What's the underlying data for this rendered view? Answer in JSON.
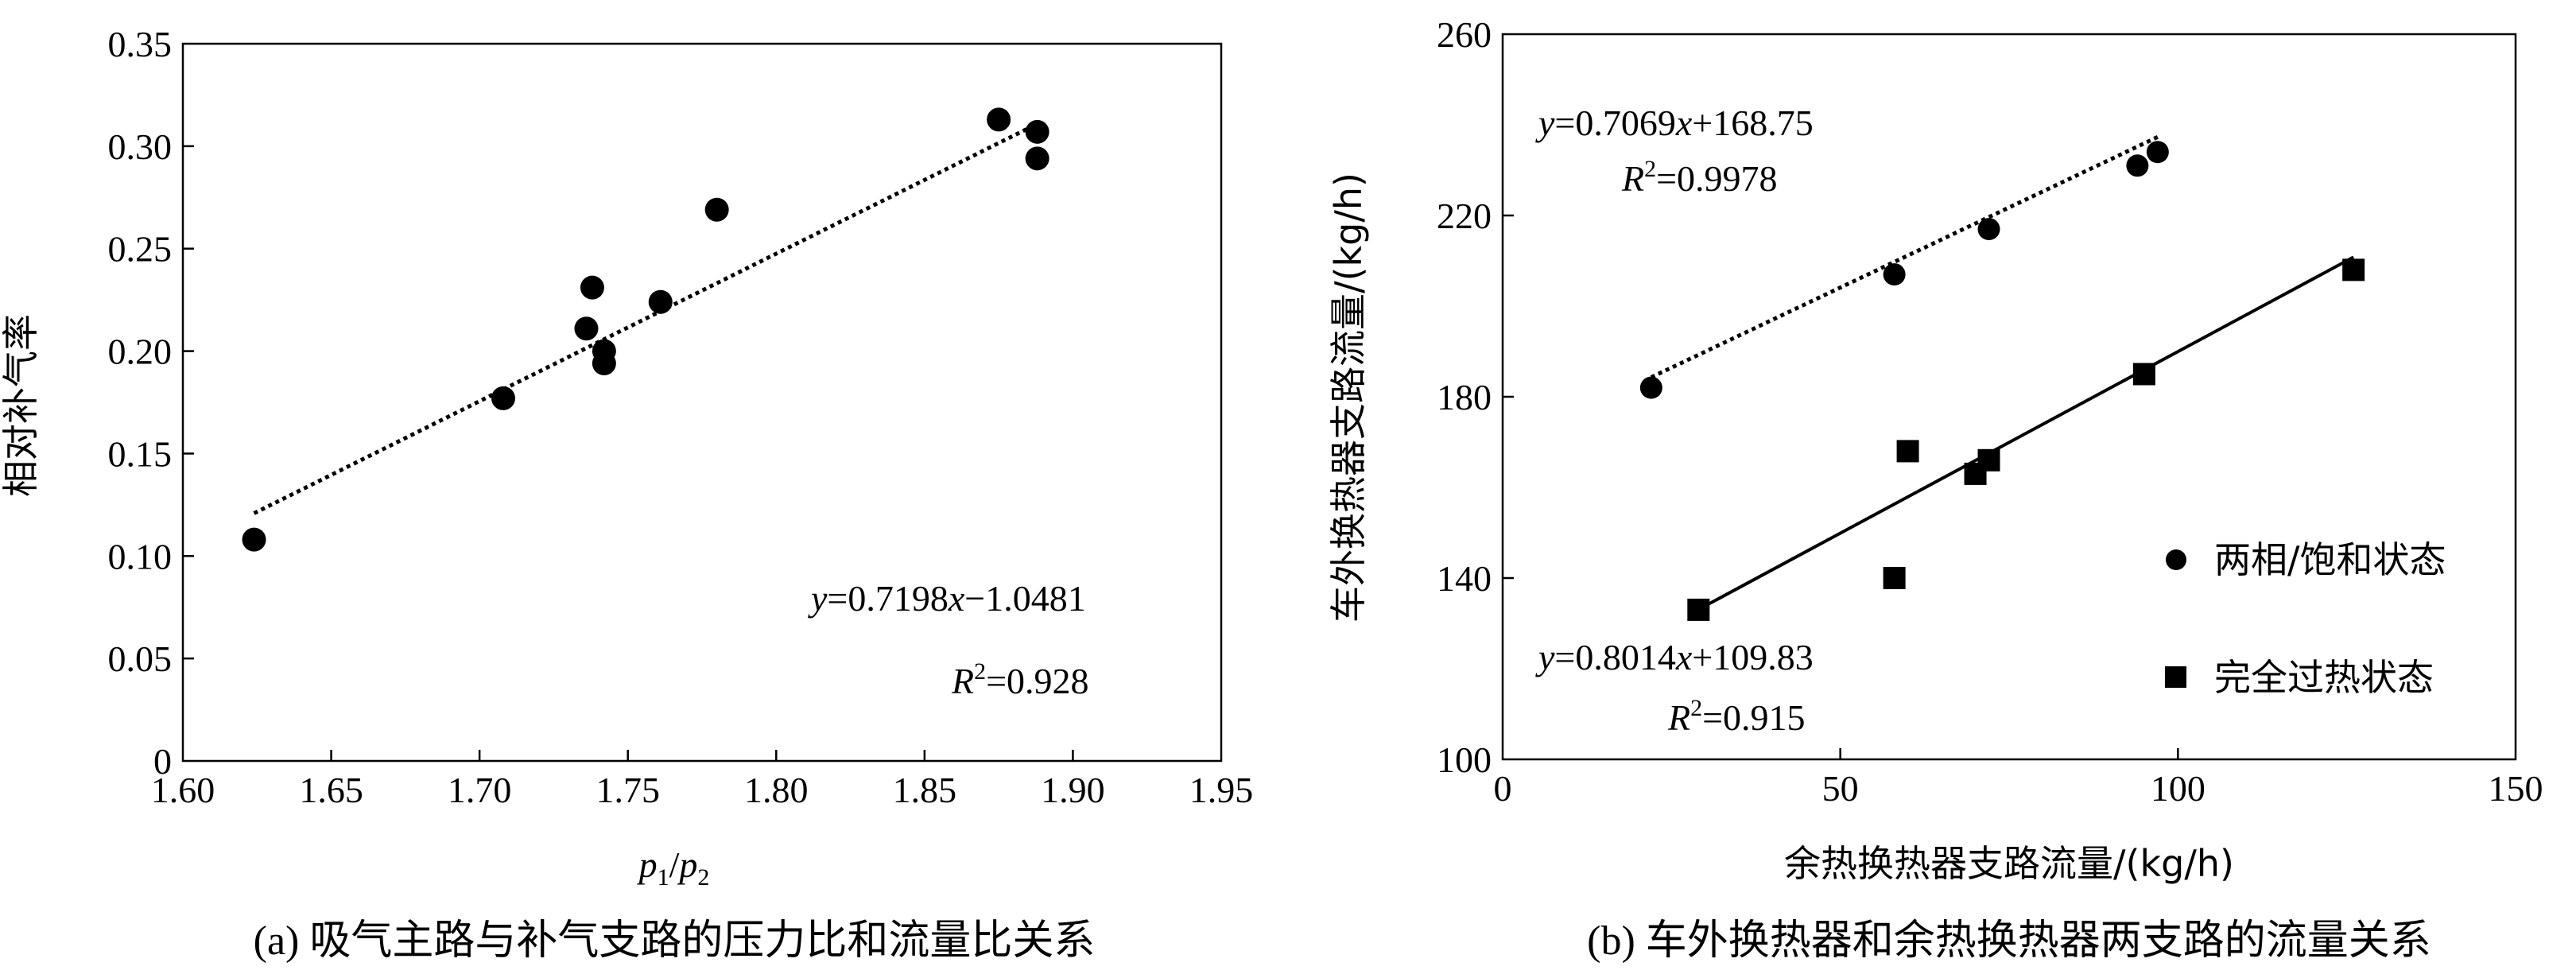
{
  "chart_data": [
    {
      "type": "scatter",
      "xlabel_p": "p",
      "xlabel_sub1": "1",
      "xlabel_slash": "/",
      "xlabel_sub2": "2",
      "ylabel": "相对补气率",
      "xlim": [
        1.6,
        1.95
      ],
      "ylim": [
        0,
        0.35
      ],
      "xticks": [
        "1.60",
        "1.65",
        "1.70",
        "1.75",
        "1.80",
        "1.85",
        "1.90",
        "1.95"
      ],
      "yticks": [
        "0",
        "0.05",
        "0.10",
        "0.15",
        "0.20",
        "0.25",
        "0.30",
        "0.35"
      ],
      "points": [
        [
          1.624,
          0.108
        ],
        [
          1.708,
          0.177
        ],
        [
          1.736,
          0.211
        ],
        [
          1.738,
          0.231
        ],
        [
          1.742,
          0.2
        ],
        [
          1.742,
          0.194
        ],
        [
          1.761,
          0.224
        ],
        [
          1.78,
          0.269
        ],
        [
          1.875,
          0.313
        ],
        [
          1.888,
          0.307
        ],
        [
          1.888,
          0.294
        ]
      ],
      "fit": {
        "slope": 0.7198,
        "intercept": -1.0481,
        "x_range": [
          1.624,
          1.888
        ]
      },
      "eq_y": "y",
      "eq_mid": "=0.7198",
      "eq_x": "x",
      "eq_rest": "−1.0481",
      "r2_R": "R",
      "r2_sup": "2",
      "r2_val": "=0.928",
      "caption": "(a) 吸气主路与补气支路的压力比和流量比关系"
    },
    {
      "type": "scatter",
      "xlabel": "余热换热器支路流量/(kg/h)",
      "ylabel": "车外换热器支路流量/(kg/h)",
      "xlim": [
        0,
        150
      ],
      "ylim": [
        100,
        260
      ],
      "xticks": [
        "0",
        "50",
        "100",
        "150"
      ],
      "yticks": [
        "100",
        "140",
        "180",
        "220",
        "260"
      ],
      "series": [
        {
          "name": "两相/饱和状态",
          "marker": "circle",
          "points": [
            [
              22,
              182
            ],
            [
              58,
              207
            ],
            [
              72,
              217
            ],
            [
              94,
              231
            ],
            [
              97,
              234
            ]
          ],
          "fit": {
            "slope": 0.7069,
            "intercept": 168.75,
            "x_range": [
              22,
              97
            ]
          },
          "eq_y": "y",
          "eq_mid": "=0.7069",
          "eq_x": "x",
          "eq_rest": "+168.75",
          "r2_R": "R",
          "r2_sup": "2",
          "r2_val": "=0.9978"
        },
        {
          "name": "完全过热状态",
          "marker": "square",
          "points": [
            [
              29,
              133
            ],
            [
              58,
              140
            ],
            [
              60,
              168
            ],
            [
              70,
              163
            ],
            [
              72,
              166
            ],
            [
              95,
              185
            ],
            [
              126,
              208
            ]
          ],
          "fit": {
            "slope": 0.8014,
            "intercept": 109.83,
            "x_range": [
              29,
              126
            ]
          },
          "eq_y": "y",
          "eq_mid": "=0.8014",
          "eq_x": "x",
          "eq_rest": "+109.83",
          "r2_R": "R",
          "r2_sup": "2",
          "r2_val": "=0.915"
        }
      ],
      "caption": "(b) 车外换热器和余热换热器两支路的流量关系"
    }
  ]
}
